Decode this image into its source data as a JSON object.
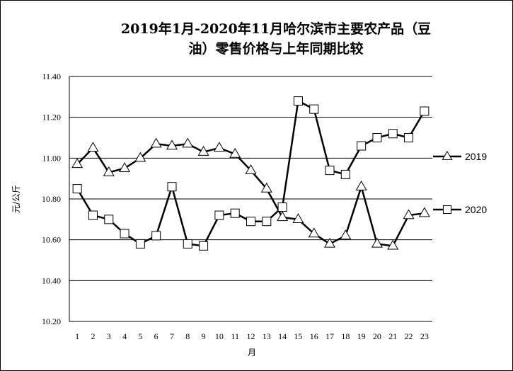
{
  "chart_data": {
    "type": "line",
    "title_line1": "2019年1月-2020年11月哈尔滨市主要农产品（豆",
    "title_line2": "油）零售价格与上年同期比较",
    "xlabel": "月",
    "ylabel": "元/公斤",
    "ylim": [
      10.2,
      11.4
    ],
    "yticks": [
      "11.40",
      "11.20",
      "11.00",
      "10.80",
      "10.60",
      "10.40",
      "10.20"
    ],
    "yticks_values": [
      11.4,
      11.2,
      11.0,
      10.8,
      10.6,
      10.4,
      10.2
    ],
    "categories": [
      "1",
      "2",
      "3",
      "4",
      "5",
      "6",
      "7",
      "8",
      "9",
      "10",
      "11",
      "12",
      "13",
      "14",
      "15",
      "16",
      "17",
      "18",
      "19",
      "20",
      "21",
      "22",
      "23"
    ],
    "grid": true,
    "legend_position": "right",
    "series": [
      {
        "name": "2019",
        "marker": "triangle",
        "values": [
          10.97,
          11.05,
          10.93,
          10.95,
          11.0,
          11.07,
          11.06,
          11.07,
          11.03,
          11.05,
          11.02,
          10.94,
          10.85,
          10.71,
          10.7,
          10.63,
          10.58,
          10.62,
          10.86,
          10.58,
          10.57,
          10.72,
          10.73
        ]
      },
      {
        "name": "2020",
        "marker": "square",
        "values": [
          10.85,
          10.72,
          10.7,
          10.63,
          10.58,
          10.62,
          10.86,
          10.58,
          10.57,
          10.72,
          10.73,
          10.69,
          10.69,
          10.76,
          11.28,
          11.24,
          10.94,
          10.92,
          11.06,
          11.1,
          11.12,
          11.1,
          11.23
        ]
      }
    ]
  }
}
